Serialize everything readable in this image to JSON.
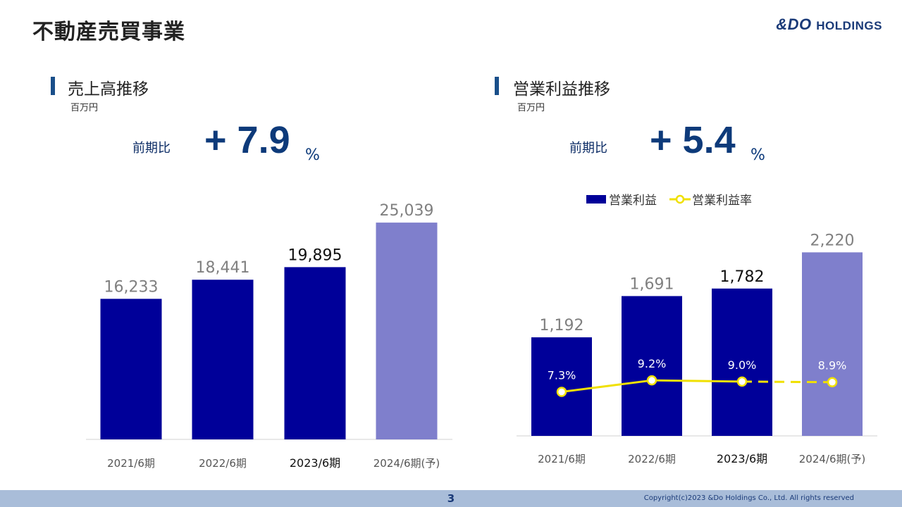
{
  "page": {
    "title": "不動産売買事業",
    "logo_main": "&DO",
    "logo_sub": "HOLDINGS",
    "page_number": "3",
    "copyright": "Copyright(c)2023 &Do Holdings Co., Ltd. All rights reserved"
  },
  "sales": {
    "section_title": "売上高推移",
    "unit": "百万円",
    "compare_label": "前期比",
    "compare_value": "+ 7.9",
    "compare_unit": "%"
  },
  "profit": {
    "section_title": "営業利益推移",
    "unit": "百万円",
    "compare_label": "前期比",
    "compare_value": "+ 5.4",
    "compare_unit": "%",
    "legend_bar": "営業利益",
    "legend_line": "営業利益率"
  },
  "colors": {
    "actual_bar": "#000099",
    "forecast_bar": "#7f7fcc",
    "line": "#f0e000",
    "highlight_label": "#111111",
    "normal_label": "#808080"
  },
  "chart_data": [
    {
      "type": "bar",
      "title": "売上高推移",
      "ylabel": "百万円",
      "categories": [
        "2021/6期",
        "2022/6期",
        "2023/6期",
        "2024/6期(予)"
      ],
      "values": [
        16233,
        18441,
        19895,
        25039
      ],
      "value_labels": [
        "16,233",
        "18,441",
        "19,895",
        "25,039"
      ],
      "forecast": [
        false,
        false,
        false,
        true
      ],
      "highlight_index": 2,
      "ylim": [
        0,
        27000
      ],
      "grid": false
    },
    {
      "type": "bar",
      "title": "営業利益推移",
      "ylabel": "百万円",
      "categories": [
        "2021/6期",
        "2022/6期",
        "2023/6期",
        "2024/6期(予)"
      ],
      "series": [
        {
          "name": "営業利益",
          "type": "bar",
          "values": [
            1192,
            1691,
            1782,
            2220
          ],
          "value_labels": [
            "1,192",
            "1,691",
            "1,782",
            "2,220"
          ]
        },
        {
          "name": "営業利益率",
          "type": "line",
          "values": [
            7.3,
            9.2,
            9.0,
            8.9
          ],
          "value_labels": [
            "7.3%",
            "9.2%",
            "9.0%",
            "8.9%"
          ],
          "dashed_from_index": 2
        }
      ],
      "forecast": [
        false,
        false,
        false,
        true
      ],
      "highlight_index": 2,
      "ylim": [
        0,
        2700
      ],
      "line_ylim": [
        0,
        37
      ],
      "legend": "top",
      "grid": false
    }
  ]
}
